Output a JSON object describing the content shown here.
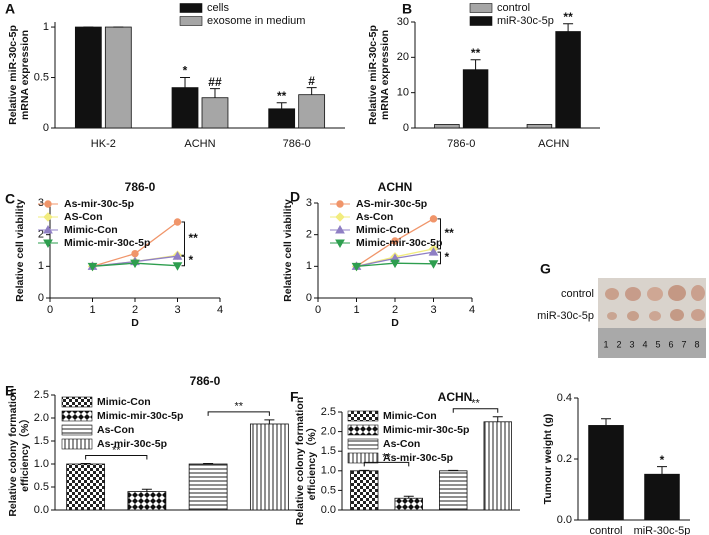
{
  "chart_data": [
    {
      "type": "bar",
      "panel": "A",
      "ylabel": [
        "Relative miR-30c-5p",
        "mRNA expression"
      ],
      "categories": [
        "HK-2",
        "ACHN",
        "786-0"
      ],
      "series": [
        {
          "name": "cells",
          "color": "#111111",
          "values": [
            1,
            0.4,
            0.19
          ],
          "errors": [
            0,
            0.1,
            0.06
          ],
          "stars": [
            null,
            "*",
            "**"
          ]
        },
        {
          "name": "exosome in medium",
          "color": "#a6a6a6",
          "values": [
            1,
            0.3,
            0.33
          ],
          "errors": [
            0,
            0.09,
            0.07
          ],
          "stars": [
            null,
            "##",
            "#"
          ]
        }
      ],
      "ylim": [
        0,
        1.05
      ],
      "yticks": [
        0,
        0.5,
        1
      ]
    },
    {
      "type": "bar",
      "panel": "B",
      "ylabel": [
        "Relative miR-30c-5p",
        "mRNA expression"
      ],
      "categories": [
        "786-0",
        "ACHN"
      ],
      "series": [
        {
          "name": "control",
          "color": "#a6a6a6",
          "values": [
            1,
            1
          ]
        },
        {
          "name": "miR-30c-5p",
          "color": "#111111",
          "values": [
            16.5,
            27.3
          ],
          "errors": [
            2.8,
            2.2
          ],
          "stars": [
            "**",
            "**"
          ]
        }
      ],
      "ylim": [
        0,
        30
      ],
      "yticks": [
        0,
        10,
        20,
        30
      ]
    },
    {
      "type": "line",
      "panel": "C",
      "title": "786-0",
      "xlabel": "D",
      "ylabel": [
        "Relative cell viability"
      ],
      "x": [
        1,
        2,
        3
      ],
      "xlim": [
        0,
        4
      ],
      "xticks": [
        0,
        1,
        2,
        3,
        4
      ],
      "ylim": [
        0,
        3
      ],
      "yticks": [
        0,
        1,
        2,
        3
      ],
      "series": [
        {
          "name": "As-mir-30c-5p",
          "color": "#f0956a",
          "marker": "circle",
          "values": [
            1,
            1.4,
            2.4
          ]
        },
        {
          "name": "AS-Con",
          "color": "#f2ec7e",
          "marker": "diamond",
          "values": [
            1,
            1.15,
            1.35
          ]
        },
        {
          "name": "Mimic-Con",
          "color": "#8f7fc4",
          "marker": "triangle-up",
          "values": [
            1,
            1.15,
            1.32
          ]
        },
        {
          "name": "Mimic-mir-30c-5p",
          "color": "#2e9e4f",
          "marker": "triangle-down",
          "values": [
            1,
            1.1,
            1.02
          ]
        }
      ],
      "bracket_labels": [
        "**",
        "*"
      ]
    },
    {
      "type": "line",
      "panel": "D",
      "title": "ACHN",
      "xlabel": "D",
      "ylabel": [
        "Relative cell viability"
      ],
      "x": [
        1,
        2,
        3
      ],
      "xlim": [
        0,
        4
      ],
      "xticks": [
        0,
        1,
        2,
        3,
        4
      ],
      "ylim": [
        0,
        3
      ],
      "yticks": [
        0,
        1,
        2,
        3
      ],
      "series": [
        {
          "name": "AS-mir-30c-5p",
          "color": "#f0956a",
          "marker": "circle",
          "values": [
            1,
            1.8,
            2.5
          ]
        },
        {
          "name": "As-Con",
          "color": "#f2ec7e",
          "marker": "diamond",
          "values": [
            1,
            1.3,
            1.55
          ]
        },
        {
          "name": "Mimic-Con",
          "color": "#8f7fc4",
          "marker": "triangle-up",
          "values": [
            1,
            1.25,
            1.45
          ]
        },
        {
          "name": "Mimic-mir-30c-5p",
          "color": "#2e9e4f",
          "marker": "triangle-down",
          "values": [
            1,
            1.1,
            1.08
          ]
        }
      ],
      "bracket_labels": [
        "**",
        "*"
      ]
    },
    {
      "type": "bar",
      "panel": "E",
      "title": "786-0",
      "ylabel": [
        "Relative colony formation",
        "efficiency（%）"
      ],
      "categories": [
        "Mimic-Con",
        "Mimic-mir-30c-5p",
        "As-Con",
        "As-mir-30c-5p"
      ],
      "values": [
        1,
        0.4,
        1,
        1.87
      ],
      "errors": [
        0.01,
        0.05,
        0.01,
        0.09
      ],
      "fills": [
        "checker",
        "wave",
        "hlines",
        "vlines"
      ],
      "ylim": [
        0,
        2.5
      ],
      "yticks": [
        {
          "value": 0,
          "label": "0.0"
        },
        0.5,
        {
          "value": 1,
          "label": "1.0"
        },
        1.5,
        {
          "value": 2,
          "label": "2.0"
        },
        2.5
      ],
      "bracket_labels": [
        "**",
        "**"
      ]
    },
    {
      "type": "bar",
      "panel": "F",
      "title": "ACHN",
      "ylabel": [
        "Relative colony formation",
        "efficiency（%）"
      ],
      "categories": [
        "Mimic-Con",
        "Mimic-mir-30c-5p",
        "As-Con",
        "As-mir-30c-5p"
      ],
      "values": [
        1,
        0.3,
        1,
        2.25
      ],
      "errors": [
        0.01,
        0.05,
        0.01,
        0.13
      ],
      "fills": [
        "checker",
        "wave",
        "hlines",
        "vlines"
      ],
      "ylim": [
        0,
        2.5
      ],
      "yticks": [
        {
          "value": 0,
          "label": "0.0"
        },
        0.5,
        {
          "value": 1,
          "label": "1.0"
        },
        1.5,
        {
          "value": 2,
          "label": "2.0"
        },
        2.5
      ],
      "bracket_labels": [
        "**",
        "**"
      ]
    },
    {
      "type": "bar",
      "panel": "G",
      "ylabel": [
        "Tumour weight (g)"
      ],
      "categories": [
        "control",
        "miR-30c-5p"
      ],
      "values": [
        0.31,
        0.15
      ],
      "errors": [
        0.022,
        0.025
      ],
      "color": "#111111",
      "stars": [
        null,
        "*"
      ],
      "ylim": [
        0,
        0.4
      ],
      "yticks": [
        {
          "value": 0,
          "label": "0.0"
        },
        0.2,
        0.4
      ],
      "photo": {
        "rows": [
          "control",
          "miR-30c-5p"
        ],
        "ruler": [
          "1",
          "2",
          "3",
          "4",
          "5",
          "6",
          "7",
          "8"
        ]
      }
    }
  ]
}
